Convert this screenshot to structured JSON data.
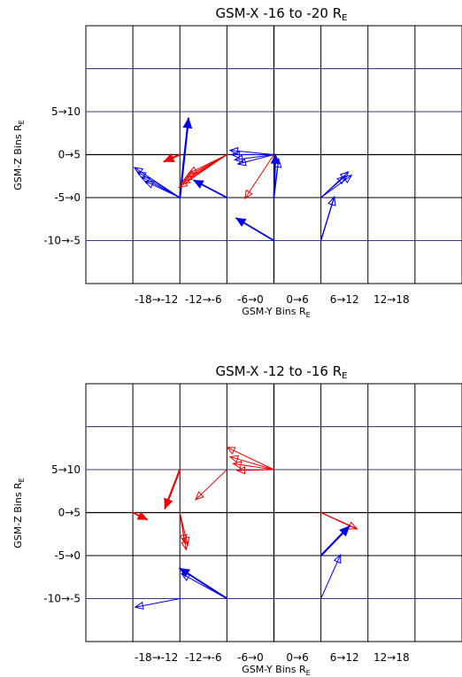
{
  "chart_data": [
    {
      "type": "vector",
      "title": "GSM-X -16 to -20 R",
      "title_sub": "E",
      "xlabel": "GSM-Y Bins R",
      "xlabel_sub": "E",
      "ylabel": "GSM-Z Bins R",
      "ylabel_sub": "E",
      "xlim": [
        -24,
        24
      ],
      "ylim": [
        -15,
        15
      ],
      "xgrid": [
        -18,
        -12,
        -6,
        0,
        6,
        12,
        18
      ],
      "ygrid": [
        -10,
        -5,
        0,
        5,
        10
      ],
      "xticks": [
        {
          "x": -18,
          "label": "-18→-12"
        },
        {
          "x": -12,
          "label": "-12→-6"
        },
        {
          "x": -6,
          "label": "-6→0"
        },
        {
          "x": 0,
          "label": "0→6"
        },
        {
          "x": 6,
          "label": "6→12"
        },
        {
          "x": 12,
          "label": "12→18"
        }
      ],
      "yticks": [
        {
          "y": 5,
          "label": "5→10"
        },
        {
          "y": 0,
          "label": "0→5"
        },
        {
          "y": -5,
          "label": "-5→0"
        },
        {
          "y": -10,
          "label": "-10→-5"
        }
      ],
      "series": [
        {
          "color": "#0000ee",
          "arrows": [
            {
              "x0": -12,
              "y0": -5,
              "x1": -10.9,
              "y1": 4.2,
              "w": 2.2
            },
            {
              "x0": -12,
              "y0": -5,
              "x1": -17.8,
              "y1": -1.5,
              "w": 1
            },
            {
              "x0": -12,
              "y0": -5,
              "x1": -17.4,
              "y1": -2.0,
              "w": 1
            },
            {
              "x0": -12,
              "y0": -5,
              "x1": -16.9,
              "y1": -2.6,
              "w": 1
            },
            {
              "x0": -12,
              "y0": -5,
              "x1": -16.4,
              "y1": -3.1,
              "w": 1
            },
            {
              "x0": -6,
              "y0": -5,
              "x1": -10.2,
              "y1": -3.0,
              "w": 1.8
            },
            {
              "x0": 0,
              "y0": 0,
              "x1": -5.6,
              "y1": 0.5,
              "w": 1
            },
            {
              "x0": 0,
              "y0": 0,
              "x1": -5.4,
              "y1": 0.0,
              "w": 1
            },
            {
              "x0": 0,
              "y0": 0,
              "x1": -5.0,
              "y1": -0.6,
              "w": 1
            },
            {
              "x0": 0,
              "y0": 0,
              "x1": -4.6,
              "y1": -1.1,
              "w": 1
            },
            {
              "x0": 0,
              "y0": -5,
              "x1": 0.2,
              "y1": 0.0,
              "w": 1.8
            },
            {
              "x0": 0,
              "y0": -5,
              "x1": 0.6,
              "y1": -0.5,
              "w": 1.4
            },
            {
              "x0": 0,
              "y0": -10,
              "x1": -4.8,
              "y1": -7.4,
              "w": 1.8
            },
            {
              "x0": 6,
              "y0": -5,
              "x1": 9.9,
              "y1": -2.4,
              "w": 1
            },
            {
              "x0": 6,
              "y0": -5,
              "x1": 9.5,
              "y1": -2.0,
              "w": 1
            },
            {
              "x0": 6,
              "y0": -5,
              "x1": 9.1,
              "y1": -2.5,
              "w": 1
            },
            {
              "x0": 6,
              "y0": -10,
              "x1": 7.7,
              "y1": -4.9,
              "w": 1.4
            }
          ]
        },
        {
          "color": "#ee0000",
          "arrows": [
            {
              "x0": -12,
              "y0": 0,
              "x1": -14.0,
              "y1": -0.8,
              "w": 2.2
            },
            {
              "x0": -6,
              "y0": 0,
              "x1": -12.1,
              "y1": -3.8,
              "w": 1
            },
            {
              "x0": -6,
              "y0": 0,
              "x1": -11.8,
              "y1": -3.4,
              "w": 1
            },
            {
              "x0": -6,
              "y0": 0,
              "x1": -11.5,
              "y1": -3.0,
              "w": 1
            },
            {
              "x0": -6,
              "y0": 0,
              "x1": -11.2,
              "y1": -2.6,
              "w": 1
            },
            {
              "x0": -6,
              "y0": 0,
              "x1": -10.9,
              "y1": -2.2,
              "w": 1
            },
            {
              "x0": 0,
              "y0": 0,
              "x1": -3.7,
              "y1": -5.1,
              "w": 1
            }
          ]
        }
      ]
    },
    {
      "type": "vector",
      "title": "GSM-X -12 to -16 R",
      "title_sub": "E",
      "xlabel": "GSM-Y Bins R",
      "xlabel_sub": "E",
      "ylabel": "GSM-Z Bins R",
      "ylabel_sub": "E",
      "xlim": [
        -24,
        24
      ],
      "ylim": [
        -15,
        15
      ],
      "xgrid": [
        -18,
        -12,
        -6,
        0,
        6,
        12,
        18
      ],
      "ygrid": [
        -10,
        -5,
        0,
        5,
        10
      ],
      "xticks": [
        {
          "x": -18,
          "label": "-18→-12"
        },
        {
          "x": -12,
          "label": "-12→-6"
        },
        {
          "x": -6,
          "label": "-6→0"
        },
        {
          "x": 0,
          "label": "0→6"
        },
        {
          "x": 6,
          "label": "6→12"
        },
        {
          "x": 12,
          "label": "12→18"
        }
      ],
      "yticks": [
        {
          "y": 5,
          "label": "5→10"
        },
        {
          "y": 0,
          "label": "0→5"
        },
        {
          "y": -5,
          "label": "-5→0"
        },
        {
          "y": -10,
          "label": "-10→-5"
        }
      ],
      "series": [
        {
          "color": "#ee0000",
          "arrows": [
            {
              "x0": -12,
              "y0": 5,
              "x1": -13.9,
              "y1": 0.5,
              "w": 2.2
            },
            {
              "x0": -18,
              "y0": 0,
              "x1": -16.2,
              "y1": -0.8,
              "w": 1.8
            },
            {
              "x0": -12,
              "y0": 0,
              "x1": -11.2,
              "y1": -4.3,
              "w": 1
            },
            {
              "x0": -12,
              "y0": 0,
              "x1": -11.0,
              "y1": -3.8,
              "w": 1
            },
            {
              "x0": -12,
              "y0": 0,
              "x1": -11.4,
              "y1": -3.5,
              "w": 1
            },
            {
              "x0": 0,
              "y0": 5,
              "x1": -6.0,
              "y1": 7.6,
              "w": 1
            },
            {
              "x0": 0,
              "y0": 5,
              "x1": -5.6,
              "y1": 6.5,
              "w": 1
            },
            {
              "x0": 0,
              "y0": 5,
              "x1": -5.2,
              "y1": 5.7,
              "w": 1
            },
            {
              "x0": 0,
              "y0": 5,
              "x1": -4.7,
              "y1": 4.9,
              "w": 1
            },
            {
              "x0": -6,
              "y0": 5,
              "x1": -10.0,
              "y1": 1.5,
              "w": 1
            },
            {
              "x0": 6,
              "y0": 0,
              "x1": 10.6,
              "y1": -1.9,
              "w": 1.4
            }
          ]
        },
        {
          "color": "#0000ee",
          "arrows": [
            {
              "x0": 6,
              "y0": -5,
              "x1": 9.6,
              "y1": -1.6,
              "w": 2.2
            },
            {
              "x0": 6,
              "y0": -10,
              "x1": 8.5,
              "y1": -4.9,
              "w": 1
            },
            {
              "x0": -6,
              "y0": -10,
              "x1": -12.0,
              "y1": -6.5,
              "w": 2
            },
            {
              "x0": -6,
              "y0": -10,
              "x1": -11.8,
              "y1": -7.1,
              "w": 1
            },
            {
              "x0": -12,
              "y0": -10,
              "x1": -17.7,
              "y1": -11.0,
              "w": 1
            }
          ]
        }
      ]
    }
  ]
}
